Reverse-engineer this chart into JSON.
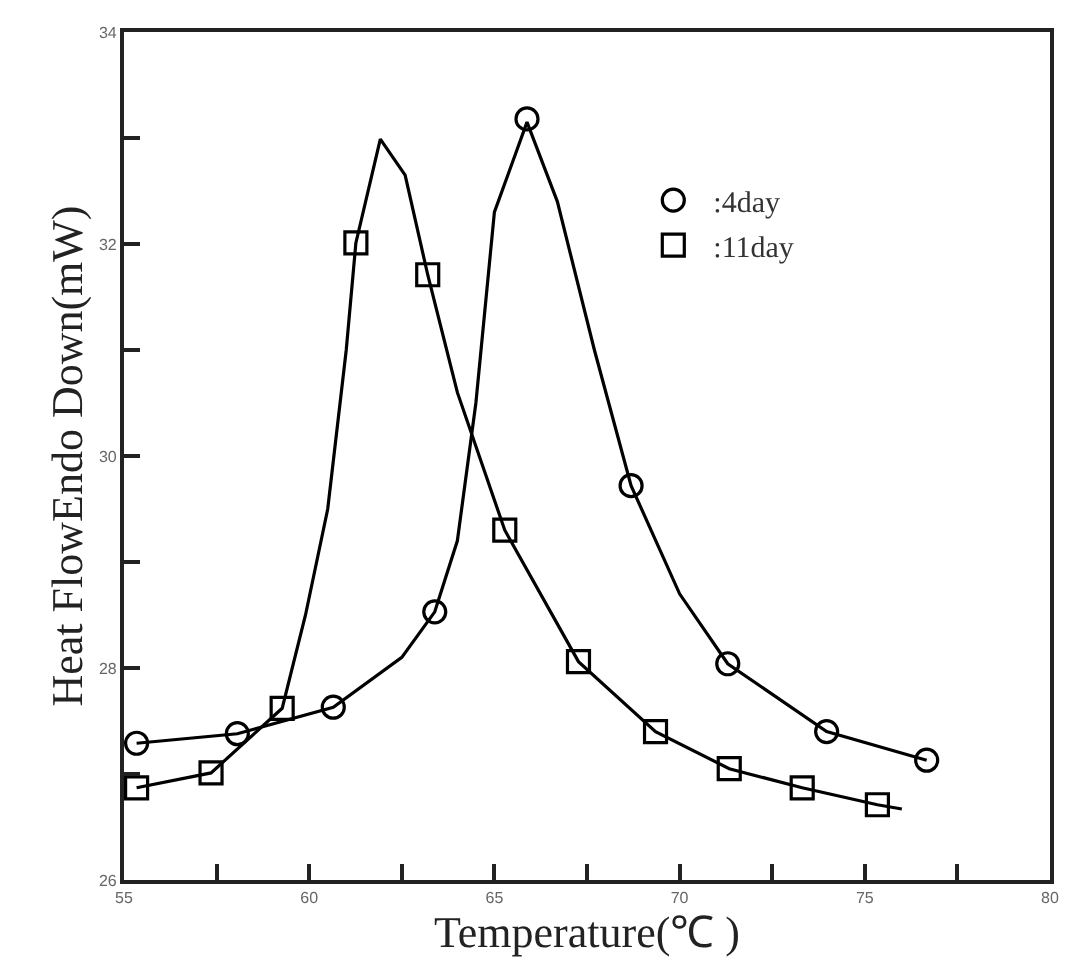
{
  "chart_data": {
    "type": "scatter",
    "xlabel": "Temperature(℃ )",
    "ylabel": "Heat FlowEndo Down(mW)",
    "xlim": [
      55,
      80
    ],
    "ylim": [
      26,
      34
    ],
    "xticks": [
      55,
      {
        "value": 57.5,
        "label": null
      },
      60,
      {
        "value": 62.5,
        "label": null
      },
      65,
      {
        "value": 67.5,
        "label": null
      },
      70,
      {
        "value": 72.5,
        "label": null
      },
      75,
      {
        "value": 77.5,
        "label": null
      },
      80
    ],
    "yticks": [
      26,
      {
        "value": 27,
        "label": null
      },
      28,
      {
        "value": 29,
        "label": null
      },
      30,
      {
        "value": 31,
        "label": null
      },
      32,
      {
        "value": 33,
        "label": null
      },
      34
    ],
    "legend": "top right",
    "series": [
      {
        "name": ":4day",
        "marker": "circle",
        "color": "#000000",
        "x": [
          55.34,
          58.06,
          60.65,
          63.39,
          65.88,
          68.69,
          71.3,
          73.97,
          76.67
        ],
        "values": [
          27.29,
          27.38,
          27.63,
          28.53,
          33.18,
          29.72,
          28.04,
          27.4,
          27.13
        ]
      },
      {
        "name": ":11day",
        "marker": "square",
        "color": "#000000",
        "x": [
          55.34,
          57.35,
          59.27,
          61.26,
          63.2,
          65.28,
          67.27,
          69.35,
          71.34,
          73.31,
          75.34
        ],
        "values": [
          26.87,
          27.01,
          27.62,
          32.01,
          31.71,
          29.3,
          28.06,
          27.4,
          27.05,
          26.87,
          26.71
        ]
      },
      {
        "type": "line",
        "color": "#000000",
        "line_style": "solid",
        "x": [
          55.34,
          58.06,
          60.65,
          62.5,
          63.39,
          64.0,
          64.5,
          65.0,
          65.88,
          66.7,
          67.7,
          68.69,
          70.0,
          71.3,
          73.97,
          76.67
        ],
        "values": [
          27.29,
          27.38,
          27.63,
          28.1,
          28.53,
          29.2,
          30.5,
          32.3,
          33.15,
          32.4,
          31.0,
          29.72,
          28.7,
          28.04,
          27.4,
          27.13
        ]
      },
      {
        "type": "line",
        "color": "#000000",
        "line_style": "solid",
        "x": [
          55.34,
          57.35,
          59.27,
          59.9,
          60.5,
          61.0,
          61.26,
          61.92,
          62.59,
          63.2,
          64.0,
          65.28,
          67.27,
          69.35,
          71.34,
          73.31,
          75.34,
          76.0
        ],
        "values": [
          26.87,
          27.01,
          27.62,
          28.5,
          29.5,
          31.0,
          32.01,
          32.99,
          32.65,
          31.71,
          30.6,
          29.3,
          28.06,
          27.4,
          27.05,
          26.87,
          26.71,
          26.67
        ]
      }
    ]
  }
}
